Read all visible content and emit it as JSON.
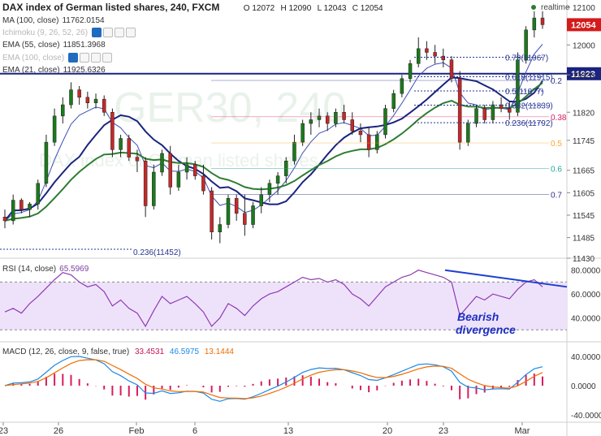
{
  "header": {
    "title": "DAX index of German listed shares, 240, FXCM",
    "ohlc": [
      "O 12072",
      "H 12090",
      "L 12043",
      "C 12054"
    ],
    "realtime": "realtime",
    "watermark": "GER30, 240",
    "watermark_sub": "DAX index of German listed shares"
  },
  "indicators": [
    {
      "label": "MA (100, close)",
      "value": "11762.0154",
      "color": "#d41a1a",
      "dim": false
    },
    {
      "label": "Ichimoku (9, 26, 52, 26)",
      "value": "",
      "color": "#888888",
      "dim": true
    },
    {
      "label": "EMA (55, close)",
      "value": "11851.3968",
      "color": "#2a3a9c",
      "dim": false
    },
    {
      "label": "EMA (100, close)",
      "value": "",
      "color": "#888888",
      "dim": true
    },
    {
      "label": "EMA (21, close)",
      "value": "11925.6326",
      "color": "#0f6a16",
      "dim": false
    }
  ],
  "chart_data": {
    "type": "candlestick",
    "x_ticks": [
      "23",
      "26",
      "Feb",
      "6",
      "13",
      "20",
      "23",
      "Mar"
    ],
    "y_ticks": [
      12100,
      12000,
      11920,
      11820,
      11745,
      11665,
      11605,
      11545,
      11485,
      11430
    ],
    "y_range": [
      11430,
      12120
    ],
    "last_price": "12054",
    "last_price_color": "#d41a1a",
    "hline_price": "11923",
    "hline_color": "#1a237e",
    "candles": [
      [
        11540,
        11560,
        11510,
        11530
      ],
      [
        11530,
        11600,
        11520,
        11585
      ],
      [
        11585,
        11590,
        11550,
        11560
      ],
      [
        11560,
        11580,
        11540,
        11575
      ],
      [
        11575,
        11640,
        11560,
        11630
      ],
      [
        11630,
        11760,
        11620,
        11740
      ],
      [
        11740,
        11830,
        11730,
        11810
      ],
      [
        11810,
        11860,
        11790,
        11840
      ],
      [
        11840,
        11900,
        11830,
        11880
      ],
      [
        11880,
        11890,
        11840,
        11860
      ],
      [
        11860,
        11875,
        11830,
        11845
      ],
      [
        11845,
        11870,
        11830,
        11855
      ],
      [
        11855,
        11865,
        11810,
        11820
      ],
      [
        11820,
        11830,
        11700,
        11720
      ],
      [
        11720,
        11760,
        11700,
        11750
      ],
      [
        11750,
        11760,
        11690,
        11700
      ],
      [
        11700,
        11720,
        11660,
        11690
      ],
      [
        11690,
        11700,
        11540,
        11570
      ],
      [
        11570,
        11680,
        11560,
        11660
      ],
      [
        11660,
        11720,
        11650,
        11710
      ],
      [
        11710,
        11730,
        11600,
        11620
      ],
      [
        11620,
        11680,
        11610,
        11660
      ],
      [
        11660,
        11700,
        11640,
        11680
      ],
      [
        11680,
        11690,
        11640,
        11650
      ],
      [
        11650,
        11680,
        11600,
        11610
      ],
      [
        11610,
        11620,
        11480,
        11500
      ],
      [
        11500,
        11540,
        11470,
        11520
      ],
      [
        11520,
        11600,
        11510,
        11590
      ],
      [
        11590,
        11600,
        11530,
        11550
      ],
      [
        11550,
        11600,
        11490,
        11520
      ],
      [
        11520,
        11580,
        11510,
        11570
      ],
      [
        11570,
        11620,
        11550,
        11600
      ],
      [
        11600,
        11640,
        11580,
        11630
      ],
      [
        11630,
        11660,
        11600,
        11650
      ],
      [
        11650,
        11700,
        11630,
        11690
      ],
      [
        11690,
        11760,
        11680,
        11740
      ],
      [
        11740,
        11800,
        11730,
        11790
      ],
      [
        11790,
        11820,
        11760,
        11800
      ],
      [
        11800,
        11830,
        11780,
        11810
      ],
      [
        11810,
        11820,
        11770,
        11790
      ],
      [
        11790,
        11830,
        11780,
        11820
      ],
      [
        11820,
        11840,
        11790,
        11800
      ],
      [
        11800,
        11820,
        11760,
        11770
      ],
      [
        11770,
        11790,
        11740,
        11760
      ],
      [
        11760,
        11780,
        11700,
        11720
      ],
      [
        11720,
        11770,
        11710,
        11760
      ],
      [
        11760,
        11840,
        11750,
        11830
      ],
      [
        11830,
        11880,
        11820,
        11870
      ],
      [
        11870,
        11920,
        11860,
        11910
      ],
      [
        11910,
        11960,
        11900,
        11950
      ],
      [
        11950,
        12020,
        11940,
        11990
      ],
      [
        11990,
        12010,
        11960,
        11980
      ],
      [
        11980,
        12000,
        11950,
        11970
      ],
      [
        11970,
        11990,
        11940,
        11960
      ],
      [
        11960,
        11970,
        11900,
        11910
      ],
      [
        11910,
        11930,
        11720,
        11740
      ],
      [
        11740,
        11800,
        11730,
        11790
      ],
      [
        11790,
        11840,
        11780,
        11830
      ],
      [
        11830,
        11840,
        11790,
        11800
      ],
      [
        11800,
        11850,
        11790,
        11840
      ],
      [
        11840,
        11860,
        11820,
        11830
      ],
      [
        11830,
        11850,
        11800,
        11820
      ],
      [
        11820,
        11980,
        11810,
        11960
      ],
      [
        11960,
        12050,
        11950,
        12040
      ],
      [
        12040,
        12090,
        12020,
        12072
      ],
      [
        12072,
        12090,
        12043,
        12054
      ]
    ],
    "fib_levels": [
      {
        "label": "0.79(11967)",
        "value": 11967
      },
      {
        "label": "0.618(11915)",
        "value": 11915
      },
      {
        "label": "0.5(11877)",
        "value": 11877
      },
      {
        "label": "0.382(11839)",
        "value": 11839
      },
      {
        "label": "0.236(11792)",
        "value": 11792
      }
    ],
    "fib_left_label": "0.236(11452)",
    "fib_right_labels": [
      "0.2",
      "0.38",
      "0.5",
      "0.6",
      "0.7"
    ],
    "rsi": {
      "label": "RSI (14, close)",
      "value": "65.5969",
      "y_ticks": [
        "80.0000",
        "60.0000",
        "40.0000"
      ],
      "values": [
        45,
        48,
        44,
        52,
        58,
        65,
        72,
        78,
        76,
        70,
        66,
        68,
        62,
        50,
        55,
        48,
        44,
        33,
        46,
        58,
        52,
        55,
        58,
        52,
        45,
        33,
        40,
        52,
        48,
        42,
        50,
        56,
        60,
        62,
        66,
        70,
        74,
        72,
        73,
        70,
        72,
        68,
        60,
        56,
        50,
        58,
        66,
        70,
        74,
        76,
        80,
        78,
        76,
        74,
        70,
        42,
        50,
        58,
        55,
        60,
        58,
        56,
        64,
        70,
        72,
        66
      ],
      "divergence_label_1": "Bearish",
      "divergence_label_2": "divergence"
    },
    "macd": {
      "label": "MACD (12, 26, close, 9, false, true)",
      "values": [
        "33.4531",
        "46.5975",
        "13.1444"
      ],
      "y_ticks": [
        "40.0000",
        "0.0000",
        "-40.0000"
      ]
    }
  },
  "x_axis": {
    "labels": [
      "23",
      "26",
      "Feb",
      "6",
      "13",
      "20",
      "23",
      "Mar"
    ]
  }
}
